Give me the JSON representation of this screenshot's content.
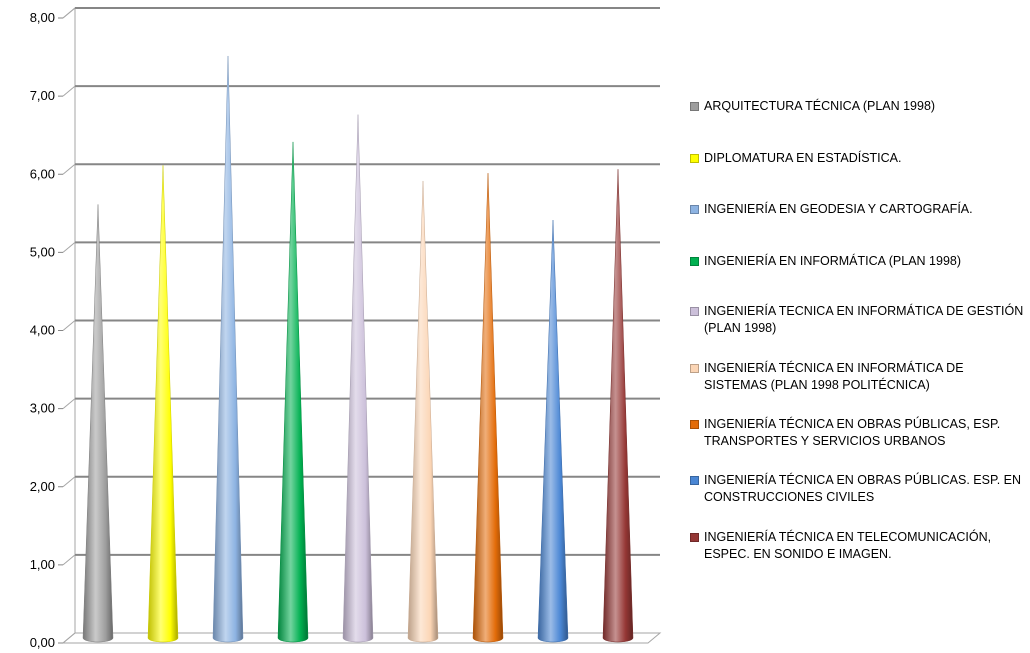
{
  "chart_data": {
    "type": "bar",
    "bar_shape": "cone",
    "y_ticks": [
      "0,00",
      "1,00",
      "2,00",
      "3,00",
      "4,00",
      "5,00",
      "6,00",
      "7,00",
      "8,00"
    ],
    "ylim": [
      0,
      8
    ],
    "grid": true,
    "legend_position": "right",
    "series": [
      {
        "name": "ARQUITECTURA  TÉCNICA  (PLAN 1998)",
        "value": 5.55,
        "color": "#9e9e9e"
      },
      {
        "name": "DIPLOMATURA EN ESTADÍSTICA.",
        "value": 6.05,
        "color": "#ffff00"
      },
      {
        "name": "INGENIERÍA  EN GEODESIA Y CARTOGRAFÍA.",
        "value": 7.45,
        "color": "#8db3e2"
      },
      {
        "name": "INGENIERÍA  EN INFORMÁTICA  (PLAN 1998)",
        "value": 6.35,
        "color": "#00b050"
      },
      {
        "name": "INGENIERÍA  TECNICA  EN INFORMÁTICA  DE GESTIÓN (PLAN 1998)",
        "value": 6.7,
        "color": "#ccc0da"
      },
      {
        "name": "INGENIERÍA  TÉCNICA  EN INFORMÁTICA  DE SISTEMAS (PLAN 1998 POLITÉCNICA)",
        "value": 5.85,
        "color": "#fbd5b5"
      },
      {
        "name": "INGENIERÍA  TÉCNICA  EN OBRAS PÚBLICAS, ESP. TRANSPORTES Y SERVICIOS  URBANOS",
        "value": 5.95,
        "color": "#e36c09"
      },
      {
        "name": "INGENIERÍA  TÉCNICA  EN OBRAS PÚBLICAS. ESP. EN CONSTRUCCIONES  CIVILES",
        "value": 5.35,
        "color": "#4a86d4"
      },
      {
        "name": "INGENIERÍA  TÉCNICA  EN TELECOMUNICACIÓN, ESPEC. EN SONIDO E IMAGEN.",
        "value": 6.0,
        "color": "#953735"
      }
    ]
  }
}
